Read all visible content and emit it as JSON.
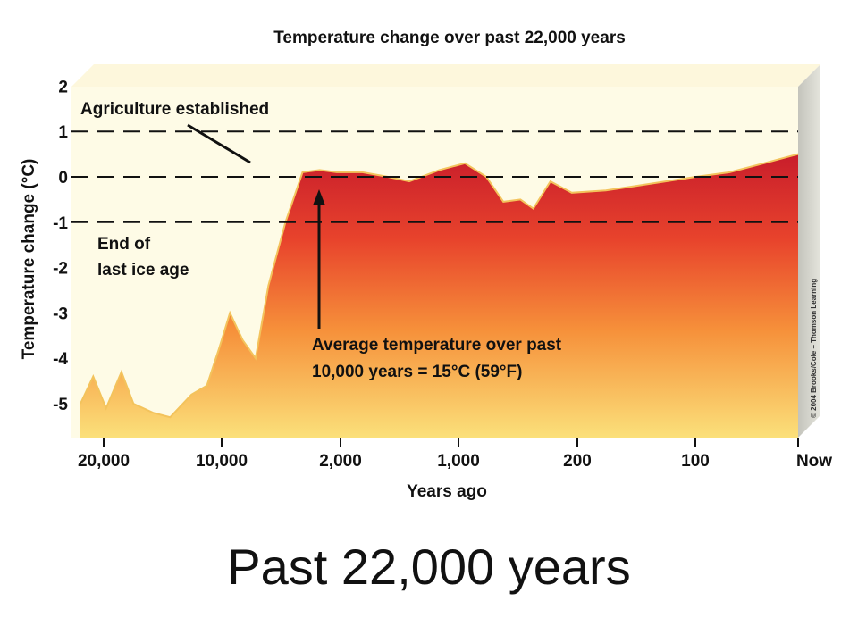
{
  "slide": {
    "caption": "Past 22,000 years"
  },
  "credit": "© 2004 Brooks/Cole – Thomson Learning",
  "chart_data": {
    "type": "area",
    "title": "Temperature change over past 22,000 years",
    "xlabel": "Years ago",
    "ylabel": "Temperature change (°C)",
    "x_ticks": [
      "20,000",
      "10,000",
      "2,000",
      "1,000",
      "200",
      "100",
      "Now"
    ],
    "y_ticks": [
      2,
      1,
      0,
      -1,
      -2,
      -3,
      -4,
      -5
    ],
    "ylim": [
      -5.8,
      2.0
    ],
    "x_scale": "nonlinear (categorical-spaced ticks)",
    "grid": "dashed lines at +1, 0, -1",
    "fill_gradient": [
      "#c81d2b",
      "#e8432c",
      "#f6903a",
      "#fbe07a"
    ],
    "plot_background": "#fefbe6",
    "annotations": [
      {
        "text": "Agriculture established"
      },
      {
        "text": "End of last ice age"
      },
      {
        "text": "Average temperature over past 10,000 years = 15°C (59°F)"
      }
    ],
    "series": [
      {
        "values": [
          {
            "x": 0.0,
            "y": -5.0
          },
          {
            "x": 0.15,
            "y": -4.4
          },
          {
            "x": 0.3,
            "y": -5.1
          },
          {
            "x": 0.48,
            "y": -4.3
          },
          {
            "x": 0.62,
            "y": -5.0
          },
          {
            "x": 0.85,
            "y": -5.2
          },
          {
            "x": 1.05,
            "y": -5.3
          },
          {
            "x": 1.3,
            "y": -4.8
          },
          {
            "x": 1.48,
            "y": -4.6
          },
          {
            "x": 1.62,
            "y": -3.8
          },
          {
            "x": 1.75,
            "y": -3.0
          },
          {
            "x": 1.9,
            "y": -3.6
          },
          {
            "x": 2.05,
            "y": -4.0
          },
          {
            "x": 2.2,
            "y": -2.4
          },
          {
            "x": 2.4,
            "y": -1.0
          },
          {
            "x": 2.6,
            "y": 0.1
          },
          {
            "x": 2.8,
            "y": 0.15
          },
          {
            "x": 3.0,
            "y": 0.1
          },
          {
            "x": 3.3,
            "y": 0.1
          },
          {
            "x": 3.6,
            "y": 0.0
          },
          {
            "x": 3.85,
            "y": -0.1
          },
          {
            "x": 4.2,
            "y": 0.15
          },
          {
            "x": 4.5,
            "y": 0.3
          },
          {
            "x": 4.75,
            "y": 0.0
          },
          {
            "x": 4.95,
            "y": -0.55
          },
          {
            "x": 5.15,
            "y": -0.5
          },
          {
            "x": 5.3,
            "y": -0.7
          },
          {
            "x": 5.5,
            "y": -0.1
          },
          {
            "x": 5.75,
            "y": -0.35
          },
          {
            "x": 6.15,
            "y": -0.3
          },
          {
            "x": 6.5,
            "y": -0.2
          },
          {
            "x": 6.85,
            "y": -0.1
          },
          {
            "x": 7.2,
            "y": 0.0
          },
          {
            "x": 7.6,
            "y": 0.1
          },
          {
            "x": 8.0,
            "y": 0.3
          },
          {
            "x": 8.4,
            "y": 0.5
          }
        ]
      }
    ]
  }
}
